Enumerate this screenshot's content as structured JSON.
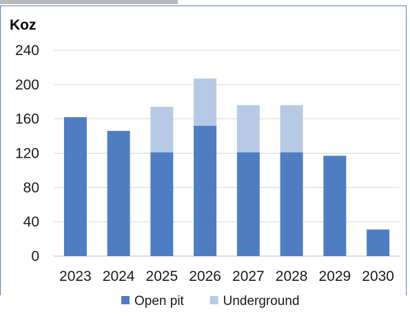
{
  "chart_data": {
    "type": "bar",
    "stacked": true,
    "title": "",
    "xlabel": "",
    "ylabel": "Koz",
    "ylim": [
      0,
      240
    ],
    "yticks": [
      0,
      40,
      80,
      120,
      160,
      200,
      240
    ],
    "grid": true,
    "legend_position": "bottom",
    "categories": [
      "2023",
      "2024",
      "2025",
      "2026",
      "2027",
      "2028",
      "2029",
      "2030"
    ],
    "series": [
      {
        "name": "Open pit",
        "color": "#4f7dc1",
        "values": [
          162,
          146,
          121,
          152,
          121,
          121,
          117,
          31
        ]
      },
      {
        "name": "Underground",
        "color": "#b6cae6",
        "values": [
          0,
          0,
          53,
          55,
          55,
          55,
          0,
          0
        ]
      }
    ]
  }
}
